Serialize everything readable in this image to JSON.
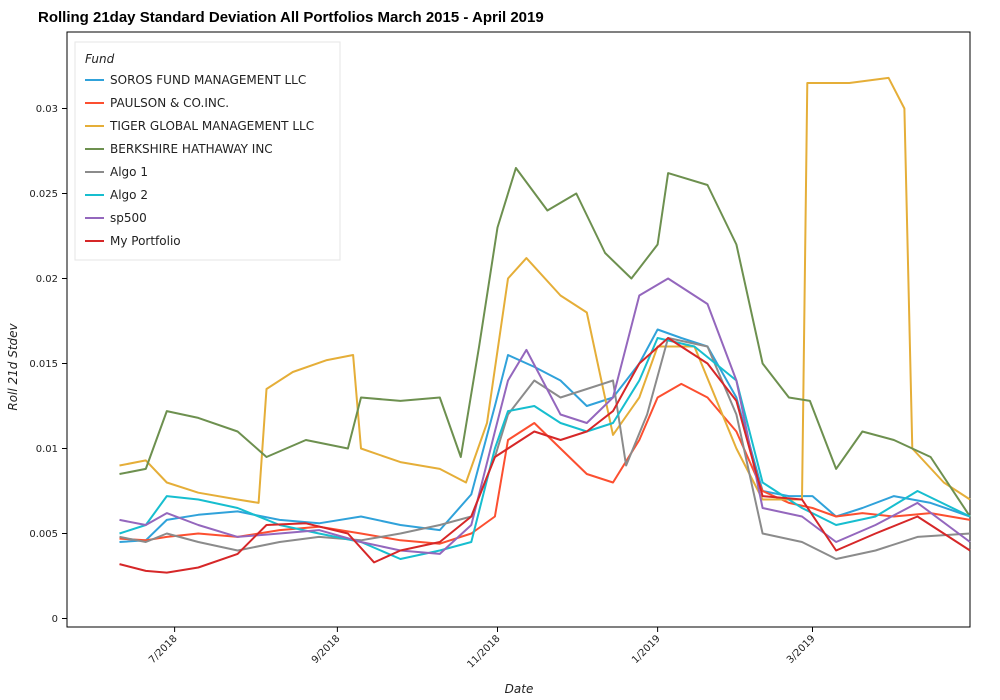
{
  "chart_data": {
    "type": "line",
    "title": "Rolling 21day Standard Deviation All Portfolios March 2015 - April 2019",
    "xlabel": "Date",
    "ylabel": "Roll 21d Stdev",
    "x_start": "2018-05-21",
    "x_end": "2019-04-30",
    "ylim": [
      -0.0005,
      0.0345
    ],
    "y_ticks": [
      0,
      0.005,
      0.01,
      0.015,
      0.02,
      0.025,
      0.03
    ],
    "y_tick_labels": [
      "0",
      "0.005",
      "0.01",
      "0.015",
      "0.02",
      "0.025",
      "0.03"
    ],
    "x_ticks": [
      "2018-07-01",
      "2018-09-01",
      "2018-11-01",
      "2019-01-01",
      "2019-03-01"
    ],
    "x_tick_labels": [
      "7/2018",
      "9/2018",
      "11/2018",
      "1/2019",
      "3/2019"
    ],
    "grid": false,
    "legend_title": "Fund",
    "legend_position": "top-left",
    "series": [
      {
        "name": "SOROS FUND MANAGEMENT LLC",
        "color": "#30a2da",
        "points": [
          [
            "2018-06-10",
            0.0045
          ],
          [
            "2018-06-20",
            0.0046
          ],
          [
            "2018-06-28",
            0.0058
          ],
          [
            "2018-07-10",
            0.0061
          ],
          [
            "2018-07-25",
            0.0063
          ],
          [
            "2018-08-10",
            0.0058
          ],
          [
            "2018-08-25",
            0.0056
          ],
          [
            "2018-09-10",
            0.006
          ],
          [
            "2018-09-25",
            0.0055
          ],
          [
            "2018-10-10",
            0.0052
          ],
          [
            "2018-10-22",
            0.0073
          ],
          [
            "2018-10-31",
            0.0125
          ],
          [
            "2018-11-05",
            0.0155
          ],
          [
            "2018-11-15",
            0.0148
          ],
          [
            "2018-11-25",
            0.014
          ],
          [
            "2018-12-05",
            0.0125
          ],
          [
            "2018-12-15",
            0.013
          ],
          [
            "2018-12-25",
            0.015
          ],
          [
            "2019-01-01",
            0.017
          ],
          [
            "2019-01-10",
            0.0165
          ],
          [
            "2019-01-20",
            0.016
          ],
          [
            "2019-01-31",
            0.013
          ],
          [
            "2019-02-10",
            0.0075
          ],
          [
            "2019-02-20",
            0.0072
          ],
          [
            "2019-03-01",
            0.0072
          ],
          [
            "2019-03-10",
            0.006
          ],
          [
            "2019-03-20",
            0.0065
          ],
          [
            "2019-04-01",
            0.0072
          ],
          [
            "2019-04-15",
            0.0068
          ],
          [
            "2019-04-30",
            0.006
          ]
        ]
      },
      {
        "name": "PAULSON & CO.INC.",
        "color": "#fc4f30",
        "points": [
          [
            "2018-06-10",
            0.0047
          ],
          [
            "2018-06-20",
            0.0046
          ],
          [
            "2018-06-28",
            0.0048
          ],
          [
            "2018-07-10",
            0.005
          ],
          [
            "2018-07-25",
            0.0048
          ],
          [
            "2018-08-10",
            0.0052
          ],
          [
            "2018-08-25",
            0.0054
          ],
          [
            "2018-09-10",
            0.005
          ],
          [
            "2018-09-25",
            0.0046
          ],
          [
            "2018-10-10",
            0.0044
          ],
          [
            "2018-10-22",
            0.005
          ],
          [
            "2018-10-31",
            0.006
          ],
          [
            "2018-11-05",
            0.0105
          ],
          [
            "2018-11-15",
            0.0115
          ],
          [
            "2018-11-25",
            0.01
          ],
          [
            "2018-12-05",
            0.0085
          ],
          [
            "2018-12-15",
            0.008
          ],
          [
            "2018-12-25",
            0.0105
          ],
          [
            "2019-01-01",
            0.013
          ],
          [
            "2019-01-10",
            0.0138
          ],
          [
            "2019-01-20",
            0.013
          ],
          [
            "2019-01-31",
            0.011
          ],
          [
            "2019-02-10",
            0.0075
          ],
          [
            "2019-02-20",
            0.0068
          ],
          [
            "2019-03-01",
            0.0065
          ],
          [
            "2019-03-10",
            0.006
          ],
          [
            "2019-03-20",
            0.0062
          ],
          [
            "2019-04-01",
            0.006
          ],
          [
            "2019-04-15",
            0.0062
          ],
          [
            "2019-04-30",
            0.0058
          ]
        ]
      },
      {
        "name": "TIGER GLOBAL MANAGEMENT LLC",
        "color": "#e5ae38",
        "points": [
          [
            "2018-06-10",
            0.009
          ],
          [
            "2018-06-20",
            0.0093
          ],
          [
            "2018-06-28",
            0.008
          ],
          [
            "2018-07-10",
            0.0074
          ],
          [
            "2018-07-25",
            0.007
          ],
          [
            "2018-08-02",
            0.0068
          ],
          [
            "2018-08-05",
            0.0135
          ],
          [
            "2018-08-15",
            0.0145
          ],
          [
            "2018-08-28",
            0.0152
          ],
          [
            "2018-09-07",
            0.0155
          ],
          [
            "2018-09-10",
            0.01
          ],
          [
            "2018-09-25",
            0.0092
          ],
          [
            "2018-10-10",
            0.0088
          ],
          [
            "2018-10-20",
            0.008
          ],
          [
            "2018-10-28",
            0.0115
          ],
          [
            "2018-11-05",
            0.02
          ],
          [
            "2018-11-12",
            0.0212
          ],
          [
            "2018-11-25",
            0.019
          ],
          [
            "2018-12-05",
            0.018
          ],
          [
            "2018-12-15",
            0.0108
          ],
          [
            "2018-12-25",
            0.013
          ],
          [
            "2019-01-01",
            0.016
          ],
          [
            "2019-01-15",
            0.016
          ],
          [
            "2019-01-31",
            0.01
          ],
          [
            "2019-02-10",
            0.007
          ],
          [
            "2019-02-25",
            0.007
          ],
          [
            "2019-02-27",
            0.0315
          ],
          [
            "2019-03-15",
            0.0315
          ],
          [
            "2019-03-30",
            0.0318
          ],
          [
            "2019-04-05",
            0.03
          ],
          [
            "2019-04-08",
            0.01
          ],
          [
            "2019-04-20",
            0.008
          ],
          [
            "2019-04-30",
            0.007
          ]
        ]
      },
      {
        "name": "BERKSHIRE HATHAWAY INC",
        "color": "#6d904f",
        "points": [
          [
            "2018-06-10",
            0.0085
          ],
          [
            "2018-06-20",
            0.0088
          ],
          [
            "2018-06-28",
            0.0122
          ],
          [
            "2018-07-10",
            0.0118
          ],
          [
            "2018-07-25",
            0.011
          ],
          [
            "2018-08-05",
            0.0095
          ],
          [
            "2018-08-20",
            0.0105
          ],
          [
            "2018-09-05",
            0.01
          ],
          [
            "2018-09-10",
            0.013
          ],
          [
            "2018-09-25",
            0.0128
          ],
          [
            "2018-10-10",
            0.013
          ],
          [
            "2018-10-18",
            0.0095
          ],
          [
            "2018-10-25",
            0.016
          ],
          [
            "2018-11-01",
            0.023
          ],
          [
            "2018-11-08",
            0.0265
          ],
          [
            "2018-11-20",
            0.024
          ],
          [
            "2018-12-01",
            0.025
          ],
          [
            "2018-12-12",
            0.0215
          ],
          [
            "2018-12-22",
            0.02
          ],
          [
            "2019-01-01",
            0.022
          ],
          [
            "2019-01-05",
            0.0262
          ],
          [
            "2019-01-20",
            0.0255
          ],
          [
            "2019-01-31",
            0.022
          ],
          [
            "2019-02-10",
            0.015
          ],
          [
            "2019-02-20",
            0.013
          ],
          [
            "2019-02-28",
            0.0128
          ],
          [
            "2019-03-10",
            0.0088
          ],
          [
            "2019-03-20",
            0.011
          ],
          [
            "2019-04-01",
            0.0105
          ],
          [
            "2019-04-15",
            0.0095
          ],
          [
            "2019-04-30",
            0.006
          ]
        ]
      },
      {
        "name": "Algo 1",
        "color": "#8b8b8b",
        "points": [
          [
            "2018-06-10",
            0.0048
          ],
          [
            "2018-06-20",
            0.0045
          ],
          [
            "2018-06-28",
            0.005
          ],
          [
            "2018-07-10",
            0.0045
          ],
          [
            "2018-07-25",
            0.004
          ],
          [
            "2018-08-10",
            0.0045
          ],
          [
            "2018-08-25",
            0.0048
          ],
          [
            "2018-09-10",
            0.0046
          ],
          [
            "2018-09-25",
            0.005
          ],
          [
            "2018-10-10",
            0.0055
          ],
          [
            "2018-10-22",
            0.006
          ],
          [
            "2018-10-31",
            0.0095
          ],
          [
            "2018-11-05",
            0.012
          ],
          [
            "2018-11-15",
            0.014
          ],
          [
            "2018-11-25",
            0.013
          ],
          [
            "2018-12-05",
            0.0135
          ],
          [
            "2018-12-15",
            0.014
          ],
          [
            "2018-12-20",
            0.009
          ],
          [
            "2018-12-28",
            0.012
          ],
          [
            "2019-01-05",
            0.0165
          ],
          [
            "2019-01-20",
            0.016
          ],
          [
            "2019-01-31",
            0.012
          ],
          [
            "2019-02-10",
            0.005
          ],
          [
            "2019-02-25",
            0.0045
          ],
          [
            "2019-03-10",
            0.0035
          ],
          [
            "2019-03-25",
            0.004
          ],
          [
            "2019-04-10",
            0.0048
          ],
          [
            "2019-04-30",
            0.005
          ]
        ]
      },
      {
        "name": "Algo 2",
        "color": "#17becf",
        "points": [
          [
            "2018-06-10",
            0.005
          ],
          [
            "2018-06-20",
            0.0055
          ],
          [
            "2018-06-28",
            0.0072
          ],
          [
            "2018-07-10",
            0.007
          ],
          [
            "2018-07-25",
            0.0065
          ],
          [
            "2018-08-10",
            0.0055
          ],
          [
            "2018-08-25",
            0.005
          ],
          [
            "2018-09-10",
            0.0045
          ],
          [
            "2018-09-25",
            0.0035
          ],
          [
            "2018-10-10",
            0.004
          ],
          [
            "2018-10-22",
            0.0045
          ],
          [
            "2018-10-31",
            0.01
          ],
          [
            "2018-11-05",
            0.0122
          ],
          [
            "2018-11-15",
            0.0125
          ],
          [
            "2018-11-25",
            0.0115
          ],
          [
            "2018-12-05",
            0.011
          ],
          [
            "2018-12-15",
            0.0115
          ],
          [
            "2018-12-25",
            0.014
          ],
          [
            "2019-01-01",
            0.0165
          ],
          [
            "2019-01-15",
            0.016
          ],
          [
            "2019-01-31",
            0.014
          ],
          [
            "2019-02-10",
            0.008
          ],
          [
            "2019-02-25",
            0.0065
          ],
          [
            "2019-03-10",
            0.0055
          ],
          [
            "2019-03-25",
            0.006
          ],
          [
            "2019-04-10",
            0.0075
          ],
          [
            "2019-04-30",
            0.006
          ]
        ]
      },
      {
        "name": "sp500",
        "color": "#9467bd",
        "points": [
          [
            "2018-06-10",
            0.0058
          ],
          [
            "2018-06-20",
            0.0055
          ],
          [
            "2018-06-28",
            0.0062
          ],
          [
            "2018-07-10",
            0.0055
          ],
          [
            "2018-07-25",
            0.0048
          ],
          [
            "2018-08-10",
            0.005
          ],
          [
            "2018-08-25",
            0.0052
          ],
          [
            "2018-09-10",
            0.0045
          ],
          [
            "2018-09-25",
            0.004
          ],
          [
            "2018-10-10",
            0.0038
          ],
          [
            "2018-10-22",
            0.0055
          ],
          [
            "2018-10-31",
            0.011
          ],
          [
            "2018-11-05",
            0.014
          ],
          [
            "2018-11-12",
            0.0158
          ],
          [
            "2018-11-25",
            0.012
          ],
          [
            "2018-12-05",
            0.0115
          ],
          [
            "2018-12-15",
            0.013
          ],
          [
            "2018-12-25",
            0.019
          ],
          [
            "2019-01-05",
            0.02
          ],
          [
            "2019-01-20",
            0.0185
          ],
          [
            "2019-01-31",
            0.014
          ],
          [
            "2019-02-10",
            0.0065
          ],
          [
            "2019-02-25",
            0.006
          ],
          [
            "2019-03-10",
            0.0045
          ],
          [
            "2019-03-25",
            0.0055
          ],
          [
            "2019-04-10",
            0.0068
          ],
          [
            "2019-04-30",
            0.0045
          ]
        ]
      },
      {
        "name": "My Portfolio",
        "color": "#d62728",
        "points": [
          [
            "2018-06-10",
            0.0032
          ],
          [
            "2018-06-20",
            0.0028
          ],
          [
            "2018-06-28",
            0.0027
          ],
          [
            "2018-07-10",
            0.003
          ],
          [
            "2018-07-25",
            0.0038
          ],
          [
            "2018-08-05",
            0.0055
          ],
          [
            "2018-08-20",
            0.0056
          ],
          [
            "2018-09-05",
            0.005
          ],
          [
            "2018-09-15",
            0.0033
          ],
          [
            "2018-09-25",
            0.004
          ],
          [
            "2018-10-10",
            0.0045
          ],
          [
            "2018-10-22",
            0.006
          ],
          [
            "2018-10-31",
            0.0095
          ],
          [
            "2018-11-05",
            0.01
          ],
          [
            "2018-11-15",
            0.011
          ],
          [
            "2018-11-25",
            0.0105
          ],
          [
            "2018-12-05",
            0.011
          ],
          [
            "2018-12-15",
            0.0122
          ],
          [
            "2018-12-25",
            0.015
          ],
          [
            "2019-01-05",
            0.0165
          ],
          [
            "2019-01-20",
            0.015
          ],
          [
            "2019-01-31",
            0.0128
          ],
          [
            "2019-02-10",
            0.0072
          ],
          [
            "2019-02-25",
            0.007
          ],
          [
            "2019-03-10",
            0.004
          ],
          [
            "2019-03-25",
            0.005
          ],
          [
            "2019-04-10",
            0.006
          ],
          [
            "2019-04-30",
            0.004
          ]
        ]
      }
    ]
  }
}
